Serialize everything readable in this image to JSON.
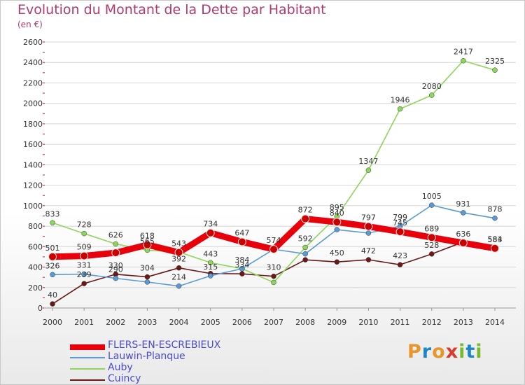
{
  "header": {
    "title": "Evolution du Montant de la Dette par Habitant",
    "unit": "(en €)"
  },
  "logo": {
    "text": "Proxiti"
  },
  "chart_data": {
    "type": "line",
    "title": "Evolution du Montant de la Dette par Habitant",
    "subtitle": "(en €)",
    "xlabel": "",
    "ylabel": "",
    "x": [
      "2000",
      "2001",
      "2002",
      "2003",
      "2004",
      "2005",
      "2006",
      "2007",
      "2008",
      "2009",
      "2010",
      "2011",
      "2012",
      "2013",
      "2014"
    ],
    "ylim": [
      0,
      2600
    ],
    "yticks": [
      0,
      200,
      400,
      600,
      800,
      1000,
      1200,
      1400,
      1600,
      1800,
      2000,
      2200,
      2400,
      2600
    ],
    "grid": "horizontal",
    "legend_position": "bottom-left",
    "series": [
      {
        "name": "FLERS-EN-ESCREBIEUX",
        "color": "#e8000b",
        "values": [
          501,
          509,
          540,
          618,
          543,
          734,
          647,
          574,
          872,
          840,
          797,
          745,
          689,
          636,
          583
        ],
        "labels": [
          "501",
          "509",
          "",
          "618",
          "543",
          "734",
          "647",
          "574",
          "872",
          "840",
          "797",
          "745",
          "689",
          "636",
          "583"
        ]
      },
      {
        "name": "Lauwin-Planque",
        "color": "#5b9bd5",
        "values": [
          326,
          331,
          290,
          254,
          214,
          315,
          384,
          574,
          529,
          766,
          732,
          799,
          1005,
          931,
          878
        ],
        "labels": [
          "326",
          "331",
          "290",
          "",
          "214",
          "315",
          "384",
          "",
          "",
          "",
          "",
          "799",
          "1005",
          "931",
          "878"
        ]
      },
      {
        "name": "Auby",
        "color": "#8ed65a",
        "values": [
          833,
          728,
          626,
          565,
          547,
          443,
          384,
          250,
          592,
          895,
          1347,
          1946,
          2080,
          2417,
          2325
        ],
        "labels": [
          "833",
          "728",
          "626",
          "565",
          "",
          "443",
          "",
          "",
          "592",
          "895",
          "1347",
          "1946",
          "2080",
          "2417",
          "2325"
        ]
      },
      {
        "name": "Cuincy",
        "color": "#6b1818",
        "values": [
          40,
          239,
          330,
          304,
          392,
          337,
          334,
          310,
          471,
          450,
          472,
          423,
          528,
          645,
          584
        ],
        "labels": [
          "40",
          "239",
          "330",
          "304",
          "392",
          "",
          "334",
          "310",
          "",
          "450",
          "472",
          "423",
          "528",
          "",
          "584"
        ]
      }
    ]
  }
}
